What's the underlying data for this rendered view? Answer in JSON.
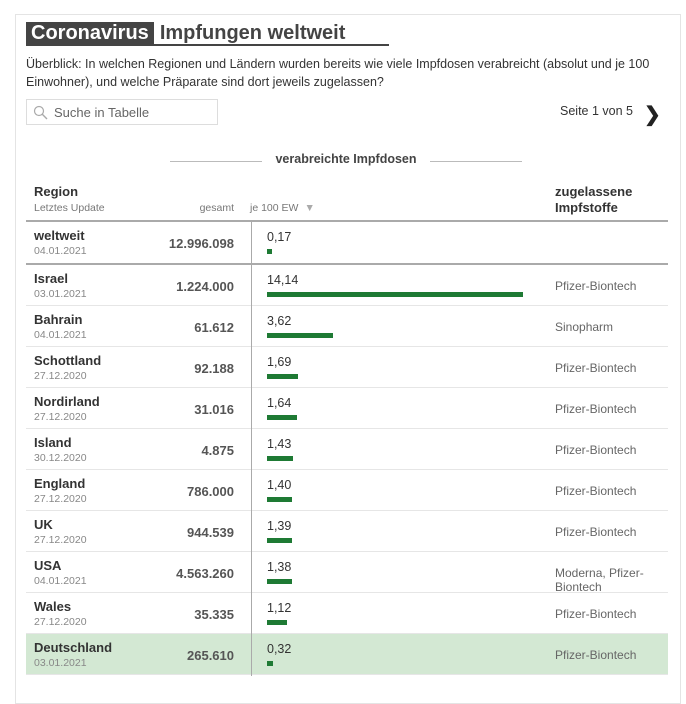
{
  "header": {
    "kicker": "Coronavirus",
    "title": "Impfungen weltweit",
    "intro": "Überblick: In welchen Regionen und Ländern wurden bereits wie viele Impfdosen verabreicht (absolut und je 100 Einwohner), und welche Präparate sind dort jeweils zugelassen?"
  },
  "search": {
    "placeholder": "Suche in Tabelle"
  },
  "pager": {
    "label": "Seite 1 von 5",
    "next": "❯"
  },
  "table": {
    "group_label": "verabreichte Impfdosen",
    "columns": {
      "region": "Region",
      "update": "Letztes Update",
      "total": "gesamt",
      "per100": "je 100 EW",
      "sort": "▼",
      "vaccines": "zugelassene Impfstoffe"
    },
    "rows": [
      {
        "name": "weltweit",
        "date": "04.01.2021",
        "total": "12.996.098",
        "per100": "0,17",
        "value": 0.17,
        "vaccines": ""
      },
      {
        "name": "Israel",
        "date": "03.01.2021",
        "total": "1.224.000",
        "per100": "14,14",
        "value": 14.14,
        "vaccines": "Pfizer-Biontech"
      },
      {
        "name": "Bahrain",
        "date": "04.01.2021",
        "total": "61.612",
        "per100": "3,62",
        "value": 3.62,
        "vaccines": "Sinopharm"
      },
      {
        "name": "Schottland",
        "date": "27.12.2020",
        "total": "92.188",
        "per100": "1,69",
        "value": 1.69,
        "vaccines": "Pfizer-Biontech"
      },
      {
        "name": "Nordirland",
        "date": "27.12.2020",
        "total": "31.016",
        "per100": "1,64",
        "value": 1.64,
        "vaccines": "Pfizer-Biontech"
      },
      {
        "name": "Island",
        "date": "30.12.2020",
        "total": "4.875",
        "per100": "1,43",
        "value": 1.43,
        "vaccines": "Pfizer-Biontech"
      },
      {
        "name": "England",
        "date": "27.12.2020",
        "total": "786.000",
        "per100": "1,40",
        "value": 1.4,
        "vaccines": "Pfizer-Biontech"
      },
      {
        "name": "UK",
        "date": "27.12.2020",
        "total": "944.539",
        "per100": "1,39",
        "value": 1.39,
        "vaccines": "Pfizer-Biontech"
      },
      {
        "name": "USA",
        "date": "04.01.2021",
        "total": "4.563.260",
        "per100": "1,38",
        "value": 1.38,
        "vaccines": "Moderna, Pfizer-Biontech"
      },
      {
        "name": "Wales",
        "date": "27.12.2020",
        "total": "35.335",
        "per100": "1,12",
        "value": 1.12,
        "vaccines": "Pfizer-Biontech"
      },
      {
        "name": "Deutschland",
        "date": "03.01.2021",
        "total": "265.610",
        "per100": "0,32",
        "value": 0.32,
        "vaccines": "Pfizer-Biontech",
        "highlight": true
      }
    ]
  },
  "colors": {
    "bar": "#1e7a34",
    "highlight": "#d3e8d3"
  }
}
